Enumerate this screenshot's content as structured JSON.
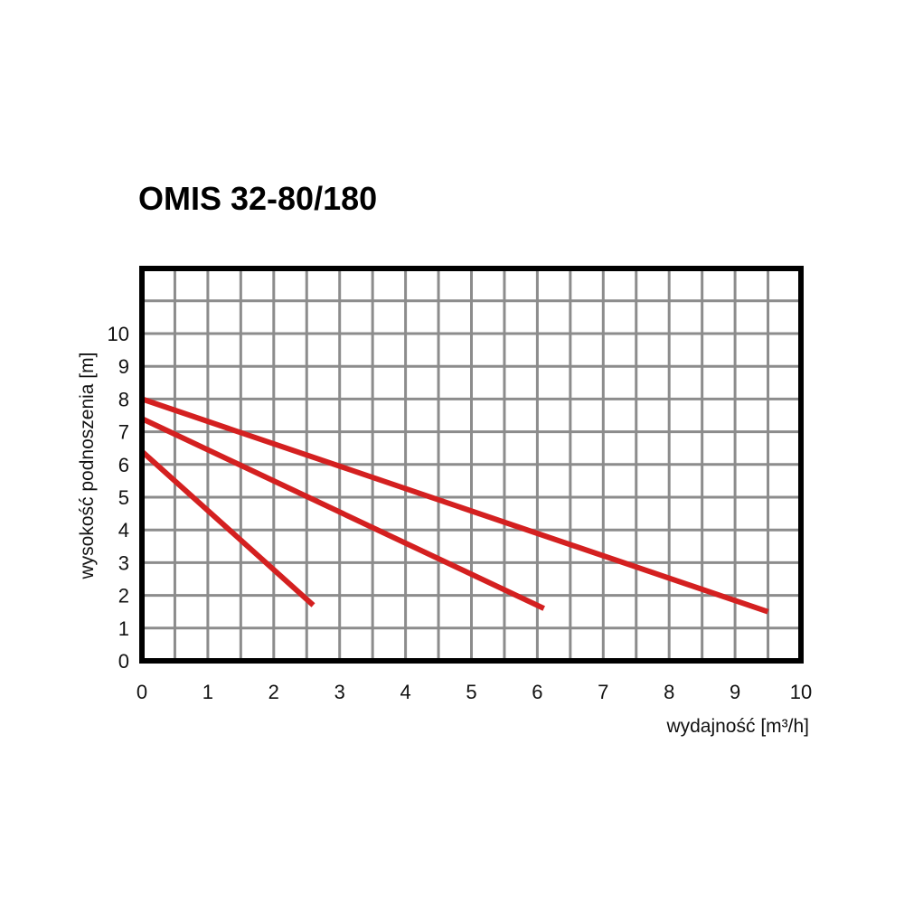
{
  "chart_data": {
    "type": "line",
    "title": "OMIS 32-80/180",
    "xlabel": "wydajność [m³/h]",
    "ylabel": "wysokość podnoszenia [m]",
    "xlim": [
      0,
      10
    ],
    "ylim": [
      0,
      11
    ],
    "x_ticks": [
      "0",
      "1",
      "2",
      "3",
      "4",
      "5",
      "6",
      "7",
      "8",
      "9",
      "10"
    ],
    "y_ticks": [
      "0",
      "1",
      "2",
      "3",
      "4",
      "5",
      "6",
      "7",
      "8",
      "9",
      "10"
    ],
    "grid": true,
    "line_color": "#d42020",
    "series": [
      {
        "values": [
          [
            0,
            6.4
          ],
          [
            2.6,
            1.7
          ]
        ]
      },
      {
        "values": [
          [
            0,
            7.4
          ],
          [
            6.1,
            1.6
          ]
        ]
      },
      {
        "values": [
          [
            0,
            8.0
          ],
          [
            9.5,
            1.5
          ]
        ]
      }
    ]
  }
}
